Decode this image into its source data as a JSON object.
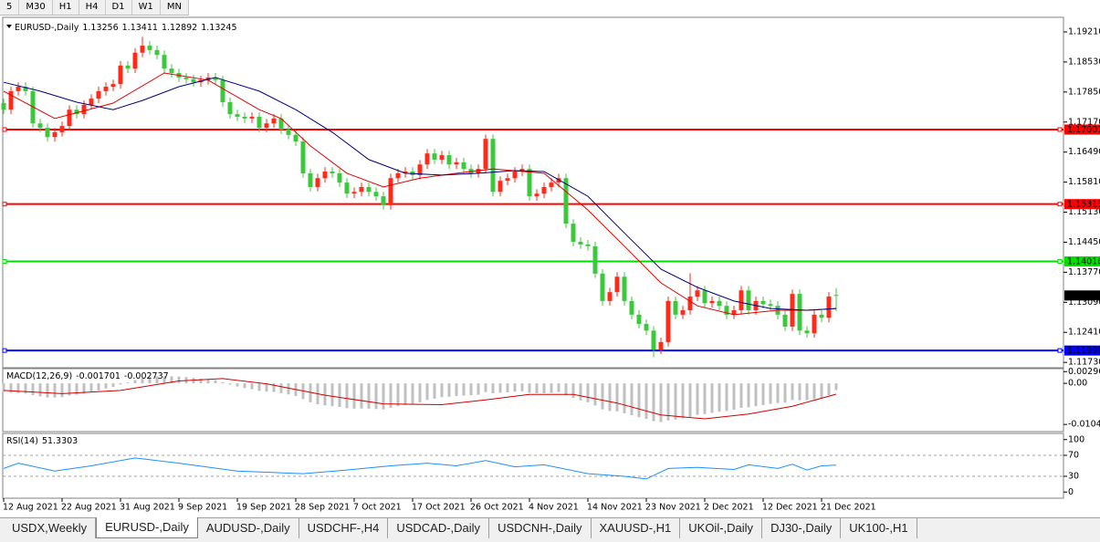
{
  "toolbar": [
    "5",
    "M30",
    "H1",
    "H4",
    "D1",
    "W1",
    "MN"
  ],
  "tabs": [
    "USDX,Weekly",
    "EURUSD-,Daily",
    "AUDUSD-,Daily",
    "USDCHF-,H4",
    "USDCAD-,Daily",
    "USDCNH-,Daily",
    "XAUUSD-,H1",
    "UKOil-,Daily",
    "DJ30-,Daily",
    "UK100-,H1"
  ],
  "active_tab": 1,
  "chart_data": [
    {
      "type": "candlestick",
      "title": "EURUSD-,Daily",
      "up_color": "#ff2a1a",
      "down_color": "#3cc83c",
      "xlim": [
        0,
        145
      ],
      "xticks": [
        {
          "value": 0,
          "label": "12 Aug 2021"
        },
        {
          "value": 8,
          "label": "22 Aug 2021"
        },
        {
          "value": 16,
          "label": "31 Aug 2021"
        },
        {
          "value": 24,
          "label": "9 Sep 2021"
        },
        {
          "value": 32,
          "label": "19 Sep 2021"
        },
        {
          "value": 40,
          "label": "28 Sep 2021"
        },
        {
          "value": 48,
          "label": "7 Oct 2021"
        },
        {
          "value": 56,
          "label": "17 Oct 2021"
        },
        {
          "value": 64,
          "label": "26 Oct 2021"
        },
        {
          "value": 72,
          "label": "4 Nov 2021"
        },
        {
          "value": 80,
          "label": "14 Nov 2021"
        },
        {
          "value": 88,
          "label": "23 Nov 2021"
        },
        {
          "value": 96,
          "label": "2 Dec 2021"
        },
        {
          "value": 104,
          "label": "12 Dec 2021"
        },
        {
          "value": 112,
          "label": "21 Dec 2021"
        }
      ],
      "ylim": [
        1.1163,
        1.1952
      ],
      "yticks": [
        {
          "value": 1.1921,
          "label": "1.19210"
        },
        {
          "value": 1.1853,
          "label": "1.18530"
        },
        {
          "value": 1.1785,
          "label": "1.17850"
        },
        {
          "value": 1.1717,
          "label": "1.17170"
        },
        {
          "value": 1.1649,
          "label": "1.16490"
        },
        {
          "value": 1.1581,
          "label": "1.15810"
        },
        {
          "value": 1.1513,
          "label": "1.15130"
        },
        {
          "value": 1.1445,
          "label": "1.14450"
        },
        {
          "value": 1.1377,
          "label": "1.13770"
        },
        {
          "value": 1.1309,
          "label": "1.13090"
        },
        {
          "value": 1.1241,
          "label": "1.12410"
        },
        {
          "value": 1.1173,
          "label": "1.11730"
        }
      ],
      "hlines": [
        {
          "value": 1.17001,
          "color": "#ff0000"
        },
        {
          "value": 1.15313,
          "color": "#ff0000"
        },
        {
          "value": 1.14016,
          "color": "#00e000"
        },
        {
          "value": 1.11999,
          "color": "#0000ff"
        }
      ],
      "open": [
        1.176,
        1.1745,
        1.1787,
        1.1797,
        1.1787,
        1.1714,
        1.1704,
        1.1683,
        1.1694,
        1.1708,
        1.1745,
        1.1735,
        1.1756,
        1.177,
        1.1787,
        1.1797,
        1.1803,
        1.1845,
        1.1838,
        1.1874,
        1.189,
        1.188,
        1.1869,
        1.1838,
        1.1828,
        1.1818,
        1.1814,
        1.1807,
        1.1812,
        1.1818,
        1.1812,
        1.1762,
        1.1735,
        1.1729,
        1.1725,
        1.1729,
        1.1704,
        1.1714,
        1.1725,
        1.17,
        1.1688,
        1.1673,
        1.1601,
        1.157,
        1.159,
        1.1605,
        1.1601,
        1.158,
        1.1555,
        1.1559,
        1.157,
        1.1559,
        1.1549,
        1.1529,
        1.159,
        1.1601,
        1.1605,
        1.1597,
        1.1621,
        1.1646,
        1.1632,
        1.1642,
        1.1621,
        1.1626,
        1.1611,
        1.1601,
        1.1611,
        1.1679,
        1.1559,
        1.1584,
        1.159,
        1.1605,
        1.1611,
        1.1549,
        1.1555,
        1.157,
        1.158,
        1.159,
        1.1487,
        1.1446,
        1.144,
        1.1436,
        1.1374,
        1.1312,
        1.1332,
        1.1367,
        1.1312,
        1.1281,
        1.126,
        1.1245,
        1.1202,
        1.1219,
        1.1312,
        1.1281,
        1.1291,
        1.1322,
        1.1336,
        1.1307,
        1.1312,
        1.1301,
        1.1281,
        1.1291,
        1.1336,
        1.1291,
        1.1312,
        1.1305,
        1.1301,
        1.1281,
        1.1254,
        1.1328,
        1.1245,
        1.1239,
        1.1281,
        1.1274,
        1.13256
      ],
      "high": [
        1.177,
        1.1797,
        1.1807,
        1.1807,
        1.1797,
        1.1724,
        1.1714,
        1.1704,
        1.1718,
        1.1755,
        1.1755,
        1.1766,
        1.178,
        1.1797,
        1.1807,
        1.1813,
        1.1855,
        1.1855,
        1.1884,
        1.191,
        1.19,
        1.189,
        1.1879,
        1.1848,
        1.1838,
        1.1828,
        1.1824,
        1.1822,
        1.1828,
        1.1828,
        1.1822,
        1.1772,
        1.1745,
        1.1739,
        1.1739,
        1.1739,
        1.1724,
        1.1735,
        1.1735,
        1.171,
        1.1698,
        1.1683,
        1.1611,
        1.16,
        1.1615,
        1.1615,
        1.1611,
        1.159,
        1.1569,
        1.158,
        1.158,
        1.1569,
        1.1559,
        1.16,
        1.1611,
        1.1615,
        1.1615,
        1.1631,
        1.1656,
        1.1656,
        1.1652,
        1.1652,
        1.1636,
        1.1636,
        1.1621,
        1.1621,
        1.1689,
        1.1689,
        1.1594,
        1.16,
        1.1615,
        1.1621,
        1.1621,
        1.1565,
        1.158,
        1.159,
        1.16,
        1.16,
        1.1497,
        1.1456,
        1.145,
        1.1446,
        1.1384,
        1.1342,
        1.1377,
        1.1377,
        1.1322,
        1.1291,
        1.127,
        1.1255,
        1.1229,
        1.1322,
        1.1322,
        1.1301,
        1.1375,
        1.1346,
        1.1346,
        1.1322,
        1.1322,
        1.1311,
        1.1301,
        1.1346,
        1.1346,
        1.1322,
        1.1322,
        1.1315,
        1.1311,
        1.1291,
        1.1338,
        1.1338,
        1.1255,
        1.1291,
        1.1291,
        1.1332,
        1.13411
      ],
      "low": [
        1.1735,
        1.1735,
        1.1777,
        1.1777,
        1.1704,
        1.1694,
        1.1673,
        1.1673,
        1.1684,
        1.1698,
        1.1725,
        1.1725,
        1.1746,
        1.176,
        1.1777,
        1.1787,
        1.1793,
        1.1828,
        1.1828,
        1.1864,
        1.187,
        1.1859,
        1.1828,
        1.1818,
        1.1808,
        1.1804,
        1.1797,
        1.1797,
        1.1802,
        1.1802,
        1.1752,
        1.1725,
        1.1719,
        1.1715,
        1.1715,
        1.1694,
        1.1694,
        1.1704,
        1.169,
        1.1678,
        1.1663,
        1.1591,
        1.156,
        1.156,
        1.158,
        1.1591,
        1.157,
        1.1545,
        1.1545,
        1.1549,
        1.1549,
        1.1539,
        1.1519,
        1.1519,
        1.158,
        1.1591,
        1.1587,
        1.1587,
        1.1611,
        1.1622,
        1.1622,
        1.1611,
        1.1611,
        1.1601,
        1.1591,
        1.1591,
        1.1601,
        1.1549,
        1.1549,
        1.1574,
        1.158,
        1.1595,
        1.1539,
        1.1539,
        1.1545,
        1.156,
        1.157,
        1.1477,
        1.1436,
        1.143,
        1.1426,
        1.1364,
        1.1302,
        1.1302,
        1.1322,
        1.1302,
        1.1271,
        1.125,
        1.1235,
        1.1185,
        1.1192,
        1.1209,
        1.1271,
        1.1271,
        1.1281,
        1.1312,
        1.1297,
        1.1297,
        1.1291,
        1.1271,
        1.1271,
        1.1281,
        1.1281,
        1.1281,
        1.1295,
        1.1291,
        1.1271,
        1.1244,
        1.1244,
        1.1235,
        1.1229,
        1.1229,
        1.1264,
        1.1264,
        1.12892
      ],
      "close": [
        1.1745,
        1.1787,
        1.1797,
        1.1787,
        1.1714,
        1.1704,
        1.1683,
        1.1694,
        1.1708,
        1.1745,
        1.1735,
        1.1756,
        1.177,
        1.1787,
        1.1797,
        1.1803,
        1.1845,
        1.1838,
        1.1874,
        1.189,
        1.188,
        1.1869,
        1.1838,
        1.1828,
        1.1818,
        1.1814,
        1.1807,
        1.1812,
        1.1818,
        1.1812,
        1.1762,
        1.1735,
        1.1729,
        1.1725,
        1.1729,
        1.1704,
        1.1714,
        1.1725,
        1.17,
        1.1688,
        1.1673,
        1.1601,
        1.157,
        1.159,
        1.1605,
        1.1601,
        1.158,
        1.1555,
        1.1559,
        1.157,
        1.1559,
        1.1549,
        1.1529,
        1.159,
        1.1601,
        1.1605,
        1.1597,
        1.1621,
        1.1646,
        1.1632,
        1.1642,
        1.1621,
        1.1626,
        1.1611,
        1.1601,
        1.1611,
        1.1679,
        1.1559,
        1.1584,
        1.159,
        1.1605,
        1.1611,
        1.1549,
        1.1555,
        1.157,
        1.158,
        1.159,
        1.1487,
        1.1446,
        1.144,
        1.1436,
        1.1374,
        1.1312,
        1.1332,
        1.1367,
        1.1312,
        1.1281,
        1.126,
        1.1245,
        1.1202,
        1.1219,
        1.1312,
        1.1281,
        1.1291,
        1.1322,
        1.1336,
        1.1307,
        1.1312,
        1.1301,
        1.1281,
        1.1291,
        1.1336,
        1.1291,
        1.1312,
        1.1305,
        1.1301,
        1.1281,
        1.1254,
        1.1328,
        1.1245,
        1.1239,
        1.1281,
        1.1274,
        1.1322,
        1.13245
      ],
      "series": [
        {
          "color": "#e00000",
          "x": [
            0,
            7,
            15,
            22,
            28,
            35,
            38,
            42,
            47,
            52,
            57,
            62,
            67,
            74,
            80,
            85,
            90,
            95,
            100,
            106,
            110,
            114
          ],
          "values": [
            1.1787,
            1.1725,
            1.176,
            1.1828,
            1.1812,
            1.1745,
            1.1725,
            1.1663,
            1.1601,
            1.157,
            1.159,
            1.1601,
            1.1611,
            1.1601,
            1.1518,
            1.1436,
            1.1353,
            1.1301,
            1.1281,
            1.1291,
            1.1291,
            1.1295
          ]
        },
        {
          "color": "#000080",
          "x": [
            0,
            5,
            10,
            15,
            19,
            24,
            29,
            35,
            40,
            45,
            50,
            55,
            60,
            65,
            70,
            74,
            80,
            85,
            90,
            95,
            100,
            105,
            110,
            114
          ],
          "values": [
            1.1807,
            1.1787,
            1.1762,
            1.1745,
            1.1766,
            1.1797,
            1.1818,
            1.1787,
            1.1745,
            1.1694,
            1.1632,
            1.1601,
            1.1597,
            1.1601,
            1.1607,
            1.1605,
            1.1549,
            1.1466,
            1.1384,
            1.1343,
            1.1312,
            1.1295,
            1.1291,
            1.1295
          ]
        }
      ]
    },
    {
      "type": "macd",
      "title": "MACD(12,26,9)",
      "ylim": [
        -0.012,
        0.0035
      ],
      "yticks": [
        0.002966,
        {
          "value": 0,
          "label": "0.00"
        },
        -0.01042
      ],
      "color": "#c0c0c0",
      "values": [
        -0.0022,
        -0.0024,
        -0.0025,
        -0.0026,
        -0.003,
        -0.0033,
        -0.0036,
        -0.0036,
        -0.0035,
        -0.0031,
        -0.0029,
        -0.0026,
        -0.0022,
        -0.0018,
        -0.0013,
        -0.0009,
        -0.0003,
        0.0002,
        0.0008,
        0.0013,
        0.0016,
        0.0018,
        0.0018,
        0.0018,
        0.0017,
        0.0016,
        0.0014,
        0.0012,
        0.001,
        0.0008,
        0.0003,
        -0.0003,
        -0.0008,
        -0.0012,
        -0.0015,
        -0.0019,
        -0.0021,
        -0.0022,
        -0.0025,
        -0.0028,
        -0.0032,
        -0.004,
        -0.0048,
        -0.0053,
        -0.0056,
        -0.0058,
        -0.006,
        -0.0063,
        -0.0064,
        -0.0064,
        -0.0064,
        -0.0065,
        -0.0066,
        -0.0062,
        -0.0058,
        -0.0055,
        -0.0052,
        -0.0048,
        -0.0042,
        -0.0039,
        -0.0035,
        -0.0034,
        -0.0032,
        -0.0031,
        -0.003,
        -0.0029,
        -0.0022,
        -0.0025,
        -0.0024,
        -0.0023,
        -0.0021,
        -0.002,
        -0.0024,
        -0.0025,
        -0.0025,
        -0.0024,
        -0.0022,
        -0.003,
        -0.0037,
        -0.0043,
        -0.0048,
        -0.0056,
        -0.0066,
        -0.007,
        -0.0071,
        -0.0076,
        -0.0081,
        -0.0086,
        -0.009,
        -0.0096,
        -0.0098,
        -0.0094,
        -0.0092,
        -0.0089,
        -0.0085,
        -0.008,
        -0.0078,
        -0.0075,
        -0.0072,
        -0.007,
        -0.0067,
        -0.0062,
        -0.0061,
        -0.0058,
        -0.0055,
        -0.0052,
        -0.005,
        -0.0049,
        -0.0042,
        -0.0043,
        -0.0043,
        -0.004,
        -0.0038,
        -0.003,
        -0.001701
      ],
      "signal": {
        "color": "#d00000",
        "x": [
          0,
          8,
          16,
          24,
          30,
          36,
          44,
          52,
          60,
          66,
          72,
          78,
          84,
          90,
          96,
          102,
          108,
          114
        ],
        "values": [
          -0.0018,
          -0.0026,
          -0.0018,
          0.0006,
          0.0012,
          -0.0001,
          -0.003,
          -0.0052,
          -0.0054,
          -0.0042,
          -0.0028,
          -0.0028,
          -0.005,
          -0.008,
          -0.009,
          -0.0078,
          -0.0058,
          -0.002737
        ]
      }
    },
    {
      "type": "line",
      "title": "RSI(14)",
      "ylim": [
        -10,
        110
      ],
      "yticks": [
        100,
        70,
        30,
        0
      ],
      "levels": [
        70,
        30
      ],
      "color": "#1e90ff",
      "x": [
        0,
        2,
        7,
        12,
        18,
        24,
        32,
        41,
        47,
        53,
        58,
        62,
        66,
        70,
        74,
        80,
        85,
        88,
        91,
        95,
        100,
        102,
        106,
        108,
        110,
        112,
        114
      ],
      "values": [
        45,
        55,
        40,
        50,
        65,
        55,
        40,
        35,
        42,
        50,
        55,
        50,
        60,
        48,
        52,
        35,
        30,
        25,
        45,
        47,
        43,
        52,
        45,
        53,
        42,
        50,
        51.3303
      ]
    }
  ]
}
